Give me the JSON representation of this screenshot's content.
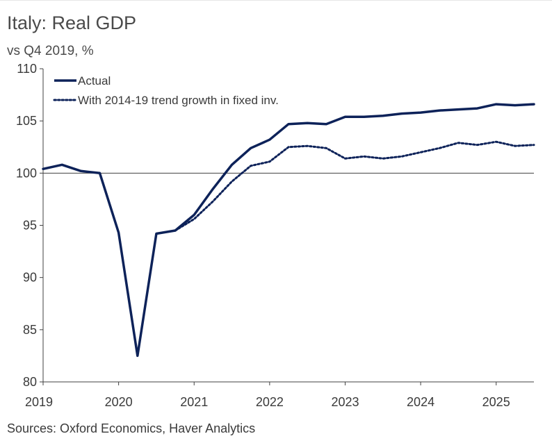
{
  "title": "Italy: Real GDP",
  "subtitle": "vs Q4 2019, %",
  "source": "Sources: Oxford Economics, Haver Analytics",
  "colors": {
    "line": "#0d2259",
    "text": "#3a3a3a",
    "axis": "#404040"
  },
  "chart_data": {
    "type": "line",
    "title": "Italy: Real GDP",
    "subtitle": "vs Q4 2019, %",
    "xlabel": "",
    "ylabel": "",
    "ylim": [
      80,
      110
    ],
    "yticks": [
      80,
      85,
      90,
      95,
      100,
      105,
      110
    ],
    "xlim": [
      "2019-Q1",
      "2025-Q3"
    ],
    "xticks": [
      "2019",
      "2020",
      "2021",
      "2022",
      "2023",
      "2024",
      "2025"
    ],
    "reference_line": 100,
    "grid": false,
    "legend_position": "top-left",
    "x": [
      "2019-Q1",
      "2019-Q2",
      "2019-Q3",
      "2019-Q4",
      "2020-Q1",
      "2020-Q2",
      "2020-Q3",
      "2020-Q4",
      "2021-Q1",
      "2021-Q2",
      "2021-Q3",
      "2021-Q4",
      "2022-Q1",
      "2022-Q2",
      "2022-Q3",
      "2022-Q4",
      "2023-Q1",
      "2023-Q2",
      "2023-Q3",
      "2023-Q4",
      "2024-Q1",
      "2024-Q2",
      "2024-Q3",
      "2024-Q4",
      "2025-Q1",
      "2025-Q2",
      "2025-Q3"
    ],
    "series": [
      {
        "name": "Actual",
        "style": "solid",
        "values": [
          100.4,
          100.8,
          100.2,
          100.0,
          94.3,
          82.5,
          94.2,
          94.5,
          96.0,
          98.5,
          100.8,
          102.4,
          103.2,
          104.7,
          104.8,
          104.7,
          105.4,
          105.4,
          105.5,
          105.7,
          105.8,
          106.0,
          106.1,
          106.2,
          106.6,
          106.5,
          106.6
        ]
      },
      {
        "name": "With 2014-19 trend growth in fixed inv.",
        "style": "dotted",
        "values": [
          null,
          null,
          null,
          null,
          null,
          null,
          null,
          94.5,
          95.6,
          97.3,
          99.2,
          100.7,
          101.1,
          102.5,
          102.6,
          102.4,
          101.4,
          101.6,
          101.4,
          101.6,
          102.0,
          102.4,
          102.9,
          102.7,
          103.0,
          102.6,
          102.7
        ]
      }
    ]
  }
}
